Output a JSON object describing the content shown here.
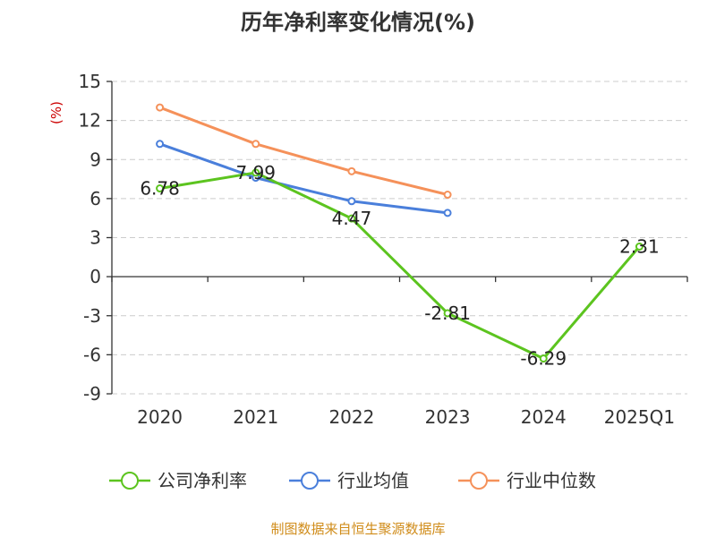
{
  "chart_data": {
    "type": "line",
    "title": "历年净利率变化情况(%)",
    "xlabel": "",
    "ylabel": "(%)",
    "categories": [
      "2020",
      "2021",
      "2022",
      "2023",
      "2024",
      "2025Q1"
    ],
    "ylim": [
      -9,
      15
    ],
    "yticks": [
      15,
      12,
      9,
      6,
      3,
      0,
      -3,
      -6,
      -9
    ],
    "ytick_labels": [
      "15",
      "12",
      "9",
      "6",
      "3",
      "0",
      "-3",
      "-6",
      "-9"
    ],
    "grid": true,
    "legend_position": "bottom",
    "series": [
      {
        "name": "公司净利率",
        "color": "#5cc41f",
        "values": [
          6.78,
          7.99,
          4.47,
          -2.81,
          -6.29,
          2.31
        ],
        "labels": [
          "6.78",
          "7.99",
          "4.47",
          "-2.81",
          "-6.29",
          "2.31"
        ]
      },
      {
        "name": "行业均值",
        "color": "#4a7fdb",
        "values": [
          10.2,
          7.6,
          5.8,
          4.9,
          null,
          null
        ]
      },
      {
        "name": "行业中位数",
        "color": "#f5915a",
        "values": [
          13.0,
          10.2,
          8.1,
          6.3,
          null,
          null
        ]
      }
    ],
    "source": "制图数据来自恒生聚源数据库"
  }
}
